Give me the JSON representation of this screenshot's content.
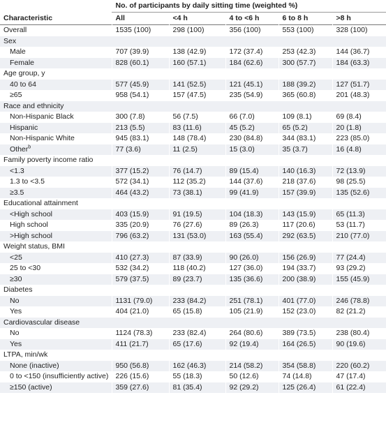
{
  "table": {
    "title": "Characteristic",
    "group_header": "No. of participants by daily sitting time (weighted %)",
    "columns": [
      "All",
      "<4 h",
      "4 to <6 h",
      "6 to 8 h",
      ">8 h"
    ],
    "overall": {
      "label": "Overall",
      "cells": [
        "1535 (100)",
        "298 (100)",
        "356 (100)",
        "553 (100)",
        "328 (100)"
      ]
    },
    "sections": [
      {
        "label": "Sex",
        "rows": [
          {
            "label": "Male",
            "cells": [
              "707 (39.9)",
              "138 (42.9)",
              "172 (37.4)",
              "253 (42.3)",
              "144 (36.7)"
            ]
          },
          {
            "label": "Female",
            "cells": [
              "828 (60.1)",
              "160 (57.1)",
              "184 (62.6)",
              "300 (57.7)",
              "184 (63.3)"
            ]
          }
        ]
      },
      {
        "label": "Age group, y",
        "rows": [
          {
            "label": "40 to 64",
            "cells": [
              "577 (45.9)",
              "141 (52.5)",
              "121 (45.1)",
              "188 (39.2)",
              "127 (51.7)"
            ]
          },
          {
            "label": "≥65",
            "cells": [
              "958 (54.1)",
              "157 (47.5)",
              "235 (54.9)",
              "365 (60.8)",
              "201 (48.3)"
            ]
          }
        ]
      },
      {
        "label": "Race and ethnicity",
        "rows": [
          {
            "label": "Non-Hispanic Black",
            "cells": [
              "300 (7.8)",
              "56 (7.5)",
              "66 (7.0)",
              "109 (8.1)",
              "69 (8.4)"
            ]
          },
          {
            "label": "Hispanic",
            "cells": [
              "213 (5.5)",
              "83 (11.6)",
              "45 (5.2)",
              "65 (5.2)",
              "20 (1.8)"
            ]
          },
          {
            "label": "Non-Hispanic White",
            "cells": [
              "945 (83.1)",
              "148 (78.4)",
              "230 (84.8)",
              "344 (83.1)",
              "223 (85.0)"
            ]
          },
          {
            "label": "Other",
            "sup": "b",
            "cells": [
              "77 (3.6)",
              "11 (2.5)",
              "15 (3.0)",
              "35 (3.7)",
              "16 (4.8)"
            ]
          }
        ]
      },
      {
        "label": "Family poverty income ratio",
        "rows": [
          {
            "label": "<1.3",
            "cells": [
              "377 (15.2)",
              "76 (14.7)",
              "89 (15.4)",
              "140 (16.3)",
              "72 (13.9)"
            ]
          },
          {
            "label": "1.3 to <3.5",
            "cells": [
              "572 (34.1)",
              "112 (35.2)",
              "144 (37.6)",
              "218 (37.6)",
              "98 (25.5)"
            ]
          },
          {
            "label": "≥3.5",
            "cells": [
              "464 (43.2)",
              "73 (38.1)",
              "99 (41.9)",
              "157 (39.9)",
              "135 (52.6)"
            ]
          }
        ]
      },
      {
        "label": "Educational attainment",
        "rows": [
          {
            "label": "<High school",
            "cells": [
              "403 (15.9)",
              "91 (19.5)",
              "104 (18.3)",
              "143 (15.9)",
              "65 (11.3)"
            ]
          },
          {
            "label": "High school",
            "cells": [
              "335 (20.9)",
              "76 (27.6)",
              "89 (26.3)",
              "117 (20.6)",
              "53 (11.7)"
            ]
          },
          {
            "label": ">High school",
            "cells": [
              "796 (63.2)",
              "131 (53.0)",
              "163 (55.4)",
              "292 (63.5)",
              "210 (77.0)"
            ]
          }
        ]
      },
      {
        "label": "Weight status, BMI",
        "rows": [
          {
            "label": "<25",
            "cells": [
              "410 (27.3)",
              "87 (33.9)",
              "90 (26.0)",
              "156 (26.9)",
              "77 (24.4)"
            ]
          },
          {
            "label": "25 to <30",
            "cells": [
              "532 (34.2)",
              "118 (40.2)",
              "127 (36.0)",
              "194 (33.7)",
              "93 (29.2)"
            ]
          },
          {
            "label": "≥30",
            "cells": [
              "579 (37.5)",
              "89 (23.7)",
              "135 (36.6)",
              "200 (38.9)",
              "155 (45.9)"
            ]
          }
        ]
      },
      {
        "label": "Diabetes",
        "rows": [
          {
            "label": "No",
            "cells": [
              "1131 (79.0)",
              "233 (84.2)",
              "251 (78.1)",
              "401 (77.0)",
              "246 (78.8)"
            ]
          },
          {
            "label": "Yes",
            "cells": [
              "404 (21.0)",
              "65 (15.8)",
              "105 (21.9)",
              "152 (23.0)",
              "82 (21.2)"
            ]
          }
        ]
      },
      {
        "label": "Cardiovascular disease",
        "rows": [
          {
            "label": "No",
            "cells": [
              "1124 (78.3)",
              "233 (82.4)",
              "264 (80.6)",
              "389 (73.5)",
              "238 (80.4)"
            ]
          },
          {
            "label": "Yes",
            "cells": [
              "411 (21.7)",
              "65 (17.6)",
              "92 (19.4)",
              "164 (26.5)",
              "90 (19.6)"
            ]
          }
        ]
      },
      {
        "label": "LTPA, min/wk",
        "rows": [
          {
            "label": "None (inactive)",
            "cells": [
              "950 (56.8)",
              "162 (46.3)",
              "214 (58.2)",
              "354 (58.8)",
              "220 (60.2)"
            ]
          },
          {
            "label": "0 to <150 (insufficiently active)",
            "cells": [
              "226 (15.6)",
              "55 (18.3)",
              "50 (12.6)",
              "74 (14.8)",
              "47 (17.4)"
            ]
          },
          {
            "label": "≥150 (active)",
            "cells": [
              "359 (27.6)",
              "81 (35.4)",
              "92 (29.2)",
              "125 (26.4)",
              "61 (22.4)"
            ]
          }
        ]
      }
    ]
  }
}
